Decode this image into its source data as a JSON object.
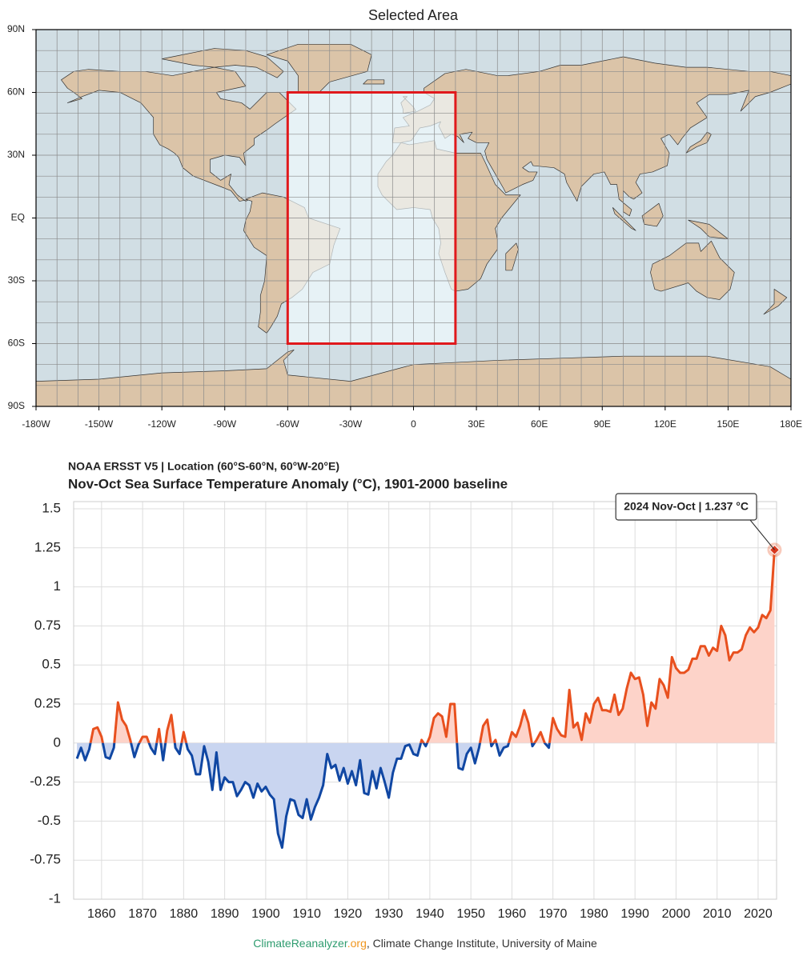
{
  "chart_data": [
    {
      "type": "map",
      "title": "Selected Area",
      "xlim": [
        -180,
        180
      ],
      "ylim": [
        -90,
        90
      ],
      "xticks": [
        {
          "value": -180,
          "label": "-180W"
        },
        {
          "value": -150,
          "label": "-150W"
        },
        {
          "value": -120,
          "label": "-120W"
        },
        {
          "value": -90,
          "label": "-90W"
        },
        {
          "value": -60,
          "label": "-60W"
        },
        {
          "value": -30,
          "label": "-30W"
        },
        0,
        {
          "value": 30,
          "label": "30E"
        },
        {
          "value": 60,
          "label": "60E"
        },
        {
          "value": 90,
          "label": "90E"
        },
        {
          "value": 120,
          "label": "120E"
        },
        {
          "value": 150,
          "label": "150E"
        },
        {
          "value": 180,
          "label": "180E"
        }
      ],
      "yticks": [
        {
          "value": 90,
          "label": "90N"
        },
        {
          "value": 60,
          "label": "60N"
        },
        {
          "value": 30,
          "label": "30N"
        },
        {
          "value": 0,
          "label": "EQ"
        },
        {
          "value": -30,
          "label": "30S"
        },
        {
          "value": -60,
          "label": "60S"
        },
        {
          "value": -90,
          "label": "90S"
        }
      ],
      "grid_step": 10,
      "region": {
        "lon": [
          -60,
          20
        ],
        "lat": [
          -60,
          60
        ],
        "color": "#e0191c"
      }
    },
    {
      "type": "line",
      "subtitle": "NOAA ERSST V5 | Location (60°S-60°N, 60°W-20°E)",
      "title": "Nov-Oct Sea Surface Temperature Anomaly (°C), 1901-2000 baseline",
      "x": [
        1854,
        1855,
        1856,
        1857,
        1858,
        1859,
        1860,
        1861,
        1862,
        1863,
        1864,
        1865,
        1866,
        1867,
        1868,
        1869,
        1870,
        1871,
        1872,
        1873,
        1874,
        1875,
        1876,
        1877,
        1878,
        1879,
        1880,
        1881,
        1882,
        1883,
        1884,
        1885,
        1886,
        1887,
        1888,
        1889,
        1890,
        1891,
        1892,
        1893,
        1894,
        1895,
        1896,
        1897,
        1898,
        1899,
        1900,
        1901,
        1902,
        1903,
        1904,
        1905,
        1906,
        1907,
        1908,
        1909,
        1910,
        1911,
        1912,
        1913,
        1914,
        1915,
        1916,
        1917,
        1918,
        1919,
        1920,
        1921,
        1922,
        1923,
        1924,
        1925,
        1926,
        1927,
        1928,
        1929,
        1930,
        1931,
        1932,
        1933,
        1934,
        1935,
        1936,
        1937,
        1938,
        1939,
        1940,
        1941,
        1942,
        1943,
        1944,
        1945,
        1946,
        1947,
        1948,
        1949,
        1950,
        1951,
        1952,
        1953,
        1954,
        1955,
        1956,
        1957,
        1958,
        1959,
        1960,
        1961,
        1962,
        1963,
        1964,
        1965,
        1966,
        1967,
        1968,
        1969,
        1970,
        1971,
        1972,
        1973,
        1974,
        1975,
        1976,
        1977,
        1978,
        1979,
        1980,
        1981,
        1982,
        1983,
        1984,
        1985,
        1986,
        1987,
        1988,
        1989,
        1990,
        1991,
        1992,
        1993,
        1994,
        1995,
        1996,
        1997,
        1998,
        1999,
        2000,
        2001,
        2002,
        2003,
        2004,
        2005,
        2006,
        2007,
        2008,
        2009,
        2010,
        2011,
        2012,
        2013,
        2014,
        2015,
        2016,
        2017,
        2018,
        2019,
        2020,
        2021,
        2022,
        2023,
        2024
      ],
      "values": [
        -0.1,
        -0.03,
        -0.11,
        -0.04,
        0.09,
        0.1,
        0.04,
        -0.09,
        -0.1,
        -0.03,
        0.26,
        0.15,
        0.11,
        0.02,
        -0.09,
        -0.01,
        0.04,
        0.04,
        -0.03,
        -0.07,
        0.09,
        -0.11,
        0.08,
        0.18,
        -0.03,
        -0.07,
        0.07,
        -0.04,
        -0.08,
        -0.2,
        -0.2,
        -0.02,
        -0.12,
        -0.3,
        -0.06,
        -0.3,
        -0.22,
        -0.25,
        -0.25,
        -0.34,
        -0.3,
        -0.25,
        -0.27,
        -0.35,
        -0.26,
        -0.31,
        -0.28,
        -0.33,
        -0.36,
        -0.58,
        -0.67,
        -0.47,
        -0.36,
        -0.37,
        -0.46,
        -0.48,
        -0.36,
        -0.49,
        -0.41,
        -0.35,
        -0.27,
        -0.07,
        -0.16,
        -0.14,
        -0.24,
        -0.16,
        -0.26,
        -0.18,
        -0.27,
        -0.11,
        -0.32,
        -0.33,
        -0.18,
        -0.29,
        -0.16,
        -0.25,
        -0.35,
        -0.19,
        -0.1,
        -0.1,
        -0.02,
        -0.01,
        -0.07,
        -0.08,
        0.02,
        -0.02,
        0.04,
        0.16,
        0.19,
        0.17,
        0.04,
        0.25,
        0.25,
        -0.16,
        -0.17,
        -0.07,
        -0.03,
        -0.13,
        -0.03,
        0.11,
        0.15,
        -0.02,
        0.02,
        -0.08,
        -0.03,
        -0.02,
        0.07,
        0.04,
        0.11,
        0.21,
        0.13,
        -0.02,
        0.02,
        0.07,
        0,
        -0.03,
        0.16,
        0.09,
        0.05,
        0.04,
        0.34,
        0.1,
        0.13,
        0.02,
        0.19,
        0.13,
        0.25,
        0.29,
        0.21,
        0.21,
        0.2,
        0.31,
        0.18,
        0.22,
        0.35,
        0.45,
        0.41,
        0.42,
        0.31,
        0.11,
        0.26,
        0.22,
        0.41,
        0.37,
        0.29,
        0.55,
        0.48,
        0.45,
        0.45,
        0.47,
        0.54,
        0.54,
        0.62,
        0.62,
        0.56,
        0.61,
        0.59,
        0.75,
        0.69,
        0.53,
        0.58,
        0.58,
        0.6,
        0.69,
        0.74,
        0.71,
        0.74,
        0.82,
        0.8,
        0.85,
        1.237
      ],
      "colors": {
        "above": "#e8501e",
        "below": "#1047a3"
      },
      "fill_colors": {
        "above": "#fdd3c9",
        "below": "#c9d5f0"
      },
      "xlim": [
        1853.2,
        2024.5
      ],
      "ylim": [
        -1,
        1.5
      ],
      "xticks": [
        1860,
        1870,
        1880,
        1890,
        1900,
        1910,
        1920,
        1930,
        1940,
        1950,
        1960,
        1970,
        1980,
        1990,
        2000,
        2010,
        2020
      ],
      "yticks": [
        1.5,
        1.25,
        1,
        0.75,
        0.5,
        0.25,
        0,
        -0.25,
        -0.5,
        -0.75,
        -1
      ],
      "grid": true,
      "annotation": "2024 Nov-Oct | 1.237 °C"
    }
  ],
  "footer": [
    "ClimateReanalyzer",
    ".org",
    ", Climate Change Institute, University of Maine"
  ]
}
